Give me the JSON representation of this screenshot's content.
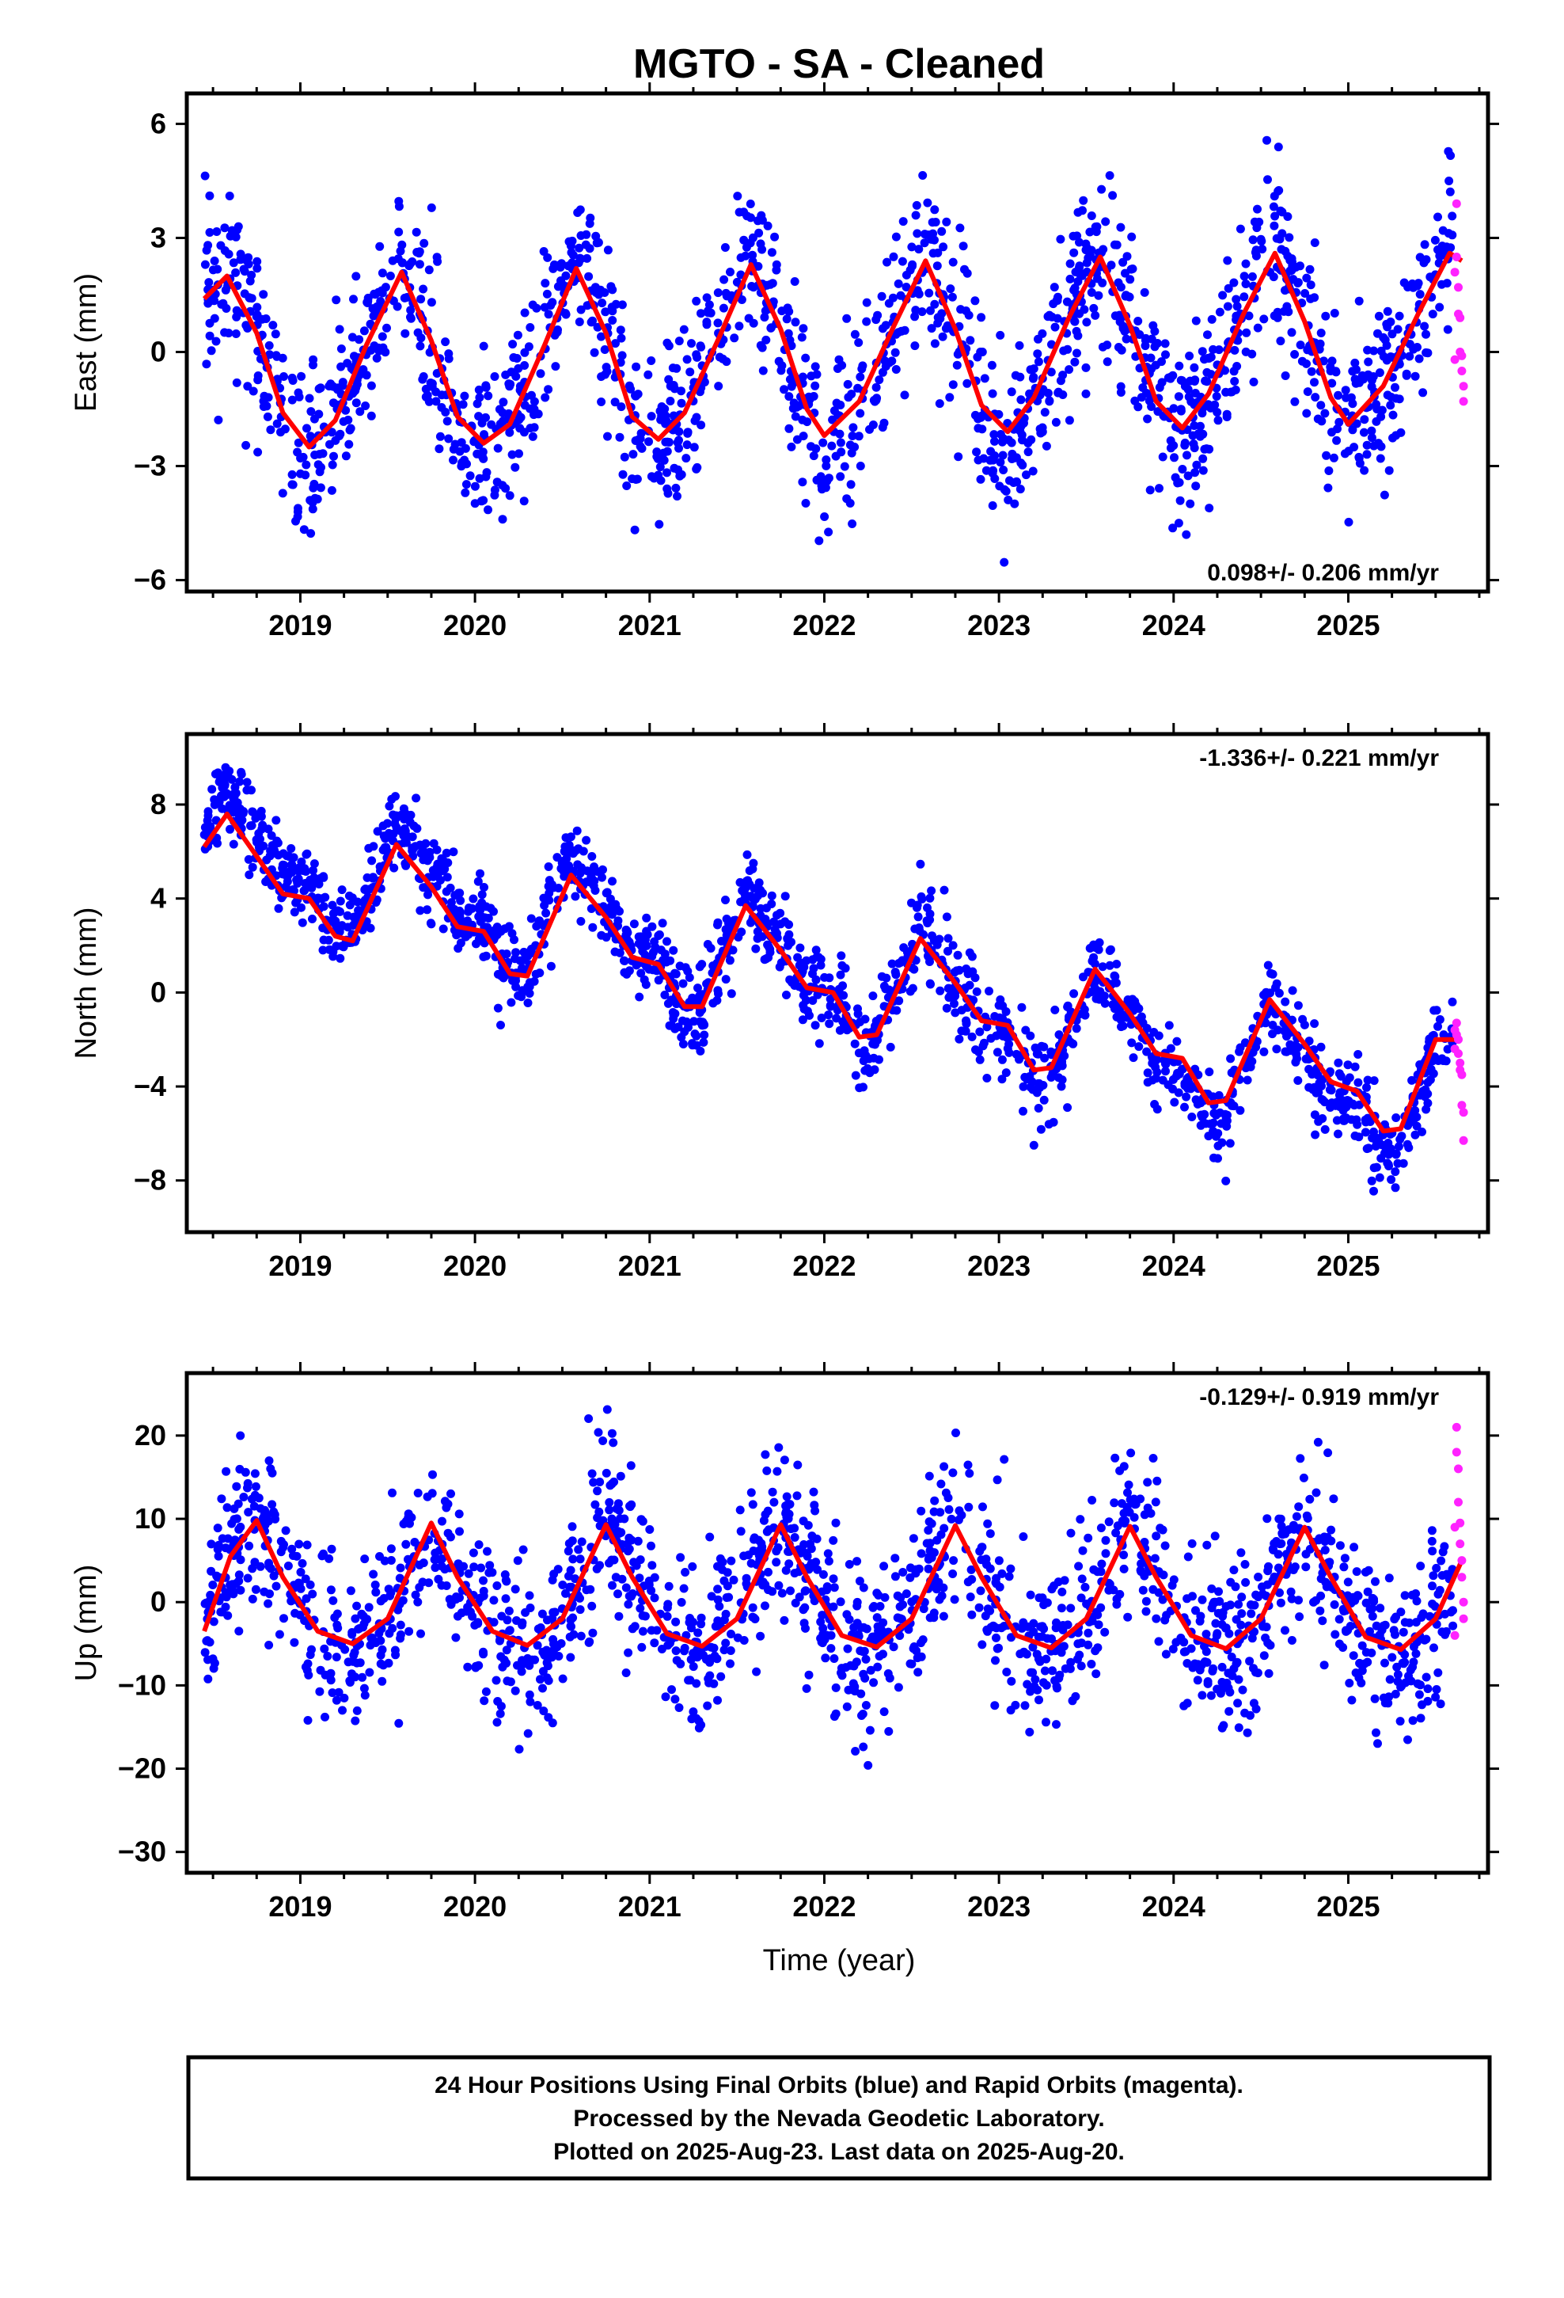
{
  "title": "MGTO  - SA - Cleaned",
  "xlabel": "Time (year)",
  "footer": {
    "line1": "24 Hour Positions Using Final Orbits (blue) and Rapid Orbits (magenta).",
    "line2": "Processed by the Nevada Geodetic Laboratory.",
    "line3": "Plotted on 2025-Aug-23. Last data on 2025-Aug-20."
  },
  "colors": {
    "final_orbits": "#0000ff",
    "rapid_orbits": "#ff22ff",
    "model_fit": "#ff0000",
    "frame": "#000000"
  },
  "chart_data": [
    {
      "type": "scatter",
      "ylabel": "East (mm)",
      "rate_label": "0.098+/- 0.206 mm/yr",
      "xlim": [
        2018.35,
        2025.8
      ],
      "ylim": [
        -6.3,
        6.8
      ],
      "x_ticks": [
        2019,
        2020,
        2021,
        2022,
        2023,
        2024,
        2025
      ],
      "x_tick_labels": [
        "2019",
        "2020",
        "2021",
        "2022",
        "2023",
        "2024",
        "2025"
      ],
      "y_ticks": [
        6,
        3,
        0,
        -3,
        -6
      ],
      "y_tick_labels": [
        "6",
        "3",
        "0",
        "−3",
        "−6"
      ],
      "model": [
        [
          2018.45,
          1.4
        ],
        [
          2018.58,
          2.0
        ],
        [
          2018.75,
          0.5
        ],
        [
          2018.9,
          -1.6
        ],
        [
          2019.05,
          -2.5
        ],
        [
          2019.2,
          -1.8
        ],
        [
          2019.38,
          0.2
        ],
        [
          2019.58,
          2.1
        ],
        [
          2019.75,
          0.3
        ],
        [
          2019.9,
          -1.7
        ],
        [
          2020.05,
          -2.4
        ],
        [
          2020.2,
          -1.9
        ],
        [
          2020.4,
          0.2
        ],
        [
          2020.58,
          2.2
        ],
        [
          2020.75,
          0.5
        ],
        [
          2020.9,
          -1.7
        ],
        [
          2021.05,
          -2.3
        ],
        [
          2021.2,
          -1.6
        ],
        [
          2021.4,
          0.4
        ],
        [
          2021.58,
          2.3
        ],
        [
          2021.75,
          0.6
        ],
        [
          2021.9,
          -1.5
        ],
        [
          2022.0,
          -2.2
        ],
        [
          2022.2,
          -1.3
        ],
        [
          2022.4,
          0.7
        ],
        [
          2022.58,
          2.4
        ],
        [
          2022.75,
          0.6
        ],
        [
          2022.9,
          -1.4
        ],
        [
          2023.05,
          -2.1
        ],
        [
          2023.2,
          -1.2
        ],
        [
          2023.4,
          0.9
        ],
        [
          2023.58,
          2.5
        ],
        [
          2023.75,
          0.7
        ],
        [
          2023.9,
          -1.3
        ],
        [
          2024.05,
          -2.0
        ],
        [
          2024.2,
          -1.1
        ],
        [
          2024.4,
          1.0
        ],
        [
          2024.58,
          2.6
        ],
        [
          2024.75,
          0.8
        ],
        [
          2024.9,
          -1.2
        ],
        [
          2025.0,
          -1.9
        ],
        [
          2025.2,
          -0.9
        ],
        [
          2025.4,
          1.0
        ],
        [
          2025.58,
          2.6
        ],
        [
          2025.65,
          2.4
        ]
      ],
      "final_orbits": {
        "start": 2018.45,
        "end": 2025.6,
        "count": 1700,
        "amplitude": 2.4,
        "offset": 0.0,
        "trend": 0.098,
        "noise": 1.1,
        "phase_year": 0.58
      },
      "rapid_orbits": [
        [
          2025.62,
          3.9
        ],
        [
          2025.62,
          2.5
        ],
        [
          2025.63,
          1.7
        ],
        [
          2025.63,
          1.0
        ],
        [
          2025.64,
          0.9
        ],
        [
          2025.64,
          0.0
        ],
        [
          2025.65,
          -0.1
        ],
        [
          2025.65,
          -0.5
        ],
        [
          2025.66,
          -0.9
        ],
        [
          2025.66,
          -1.3
        ],
        [
          2025.61,
          2.1
        ],
        [
          2025.61,
          -0.2
        ]
      ]
    },
    {
      "type": "scatter",
      "ylabel": "North (mm)",
      "rate_label": "-1.336+/- 0.221 mm/yr",
      "xlim": [
        2018.35,
        2025.8
      ],
      "ylim": [
        -10.2,
        11.0
      ],
      "x_ticks": [
        2019,
        2020,
        2021,
        2022,
        2023,
        2024,
        2025
      ],
      "x_tick_labels": [
        "2019",
        "2020",
        "2021",
        "2022",
        "2023",
        "2024",
        "2025"
      ],
      "y_ticks": [
        8,
        4,
        0,
        -4,
        -8
      ],
      "y_tick_labels": [
        "8",
        "4",
        "0",
        "−4",
        "−8"
      ],
      "model": [
        [
          2018.45,
          6.2
        ],
        [
          2018.58,
          7.6
        ],
        [
          2018.75,
          5.8
        ],
        [
          2018.9,
          4.2
        ],
        [
          2019.05,
          4.0
        ],
        [
          2019.2,
          2.4
        ],
        [
          2019.3,
          2.2
        ],
        [
          2019.55,
          6.3
        ],
        [
          2019.75,
          4.5
        ],
        [
          2019.9,
          2.8
        ],
        [
          2020.05,
          2.6
        ],
        [
          2020.2,
          0.8
        ],
        [
          2020.3,
          0.7
        ],
        [
          2020.55,
          5.0
        ],
        [
          2020.75,
          3.2
        ],
        [
          2020.9,
          1.5
        ],
        [
          2021.05,
          1.2
        ],
        [
          2021.2,
          -0.6
        ],
        [
          2021.3,
          -0.6
        ],
        [
          2021.55,
          3.7
        ],
        [
          2021.75,
          1.8
        ],
        [
          2021.9,
          0.2
        ],
        [
          2022.05,
          0.0
        ],
        [
          2022.2,
          -1.9
        ],
        [
          2022.3,
          -1.8
        ],
        [
          2022.55,
          2.3
        ],
        [
          2022.75,
          0.4
        ],
        [
          2022.9,
          -1.2
        ],
        [
          2023.05,
          -1.4
        ],
        [
          2023.2,
          -3.3
        ],
        [
          2023.3,
          -3.2
        ],
        [
          2023.55,
          1.0
        ],
        [
          2023.75,
          -0.9
        ],
        [
          2023.9,
          -2.6
        ],
        [
          2024.05,
          -2.8
        ],
        [
          2024.2,
          -4.7
        ],
        [
          2024.3,
          -4.6
        ],
        [
          2024.55,
          -0.3
        ],
        [
          2024.75,
          -2.2
        ],
        [
          2024.9,
          -3.8
        ],
        [
          2025.05,
          -4.2
        ],
        [
          2025.2,
          -5.9
        ],
        [
          2025.3,
          -5.8
        ],
        [
          2025.5,
          -2.0
        ],
        [
          2025.65,
          -2.0
        ]
      ],
      "final_orbits": {
        "start": 2018.45,
        "end": 2025.6,
        "count": 1700,
        "amplitude": 2.0,
        "offset": 8.0,
        "trend": -1.336,
        "noise": 0.9,
        "phase_year": 0.55
      },
      "rapid_orbits": [
        [
          2025.62,
          -1.3
        ],
        [
          2025.62,
          -1.8
        ],
        [
          2025.63,
          -2.0
        ],
        [
          2025.63,
          -2.6
        ],
        [
          2025.64,
          -3.0
        ],
        [
          2025.64,
          -3.3
        ],
        [
          2025.65,
          -3.5
        ],
        [
          2025.65,
          -4.8
        ],
        [
          2025.66,
          -5.1
        ],
        [
          2025.66,
          -6.3
        ],
        [
          2025.61,
          -1.6
        ],
        [
          2025.61,
          -2.4
        ]
      ]
    },
    {
      "type": "scatter",
      "ylabel": "Up (mm)",
      "rate_label": "-0.129+/- 0.919 mm/yr",
      "xlim": [
        2018.35,
        2025.8
      ],
      "ylim": [
        -32.5,
        27.5
      ],
      "x_ticks": [
        2019,
        2020,
        2021,
        2022,
        2023,
        2024,
        2025
      ],
      "x_tick_labels": [
        "2019",
        "2020",
        "2021",
        "2022",
        "2023",
        "2024",
        "2025"
      ],
      "y_ticks": [
        20,
        10,
        0,
        -10,
        -20,
        -30
      ],
      "y_tick_labels": [
        "20",
        "10",
        "0",
        "−10",
        "−20",
        "−30"
      ],
      "model": [
        [
          2018.45,
          -3.5
        ],
        [
          2018.6,
          5.5
        ],
        [
          2018.75,
          9.8
        ],
        [
          2018.9,
          3.0
        ],
        [
          2019.1,
          -3.5
        ],
        [
          2019.3,
          -5.0
        ],
        [
          2019.5,
          -2.0
        ],
        [
          2019.75,
          9.5
        ],
        [
          2019.9,
          3.0
        ],
        [
          2020.1,
          -3.5
        ],
        [
          2020.3,
          -5.2
        ],
        [
          2020.5,
          -2.0
        ],
        [
          2020.75,
          9.3
        ],
        [
          2020.9,
          3.0
        ],
        [
          2021.1,
          -3.8
        ],
        [
          2021.3,
          -5.3
        ],
        [
          2021.5,
          -2.0
        ],
        [
          2021.75,
          9.3
        ],
        [
          2021.9,
          3.0
        ],
        [
          2022.1,
          -4.0
        ],
        [
          2022.3,
          -5.4
        ],
        [
          2022.5,
          -2.0
        ],
        [
          2022.75,
          9.2
        ],
        [
          2022.9,
          3.0
        ],
        [
          2023.1,
          -4.0
        ],
        [
          2023.3,
          -5.5
        ],
        [
          2023.5,
          -2.0
        ],
        [
          2023.75,
          9.1
        ],
        [
          2023.9,
          3.0
        ],
        [
          2024.1,
          -4.0
        ],
        [
          2024.3,
          -5.6
        ],
        [
          2024.5,
          -2.0
        ],
        [
          2024.75,
          9.0
        ],
        [
          2024.9,
          3.0
        ],
        [
          2025.1,
          -4.2
        ],
        [
          2025.3,
          -5.7
        ],
        [
          2025.5,
          -2.0
        ],
        [
          2025.65,
          5.0
        ]
      ],
      "final_orbits": {
        "start": 2018.45,
        "end": 2025.6,
        "count": 1700,
        "amplitude": 7.5,
        "offset": 2.0,
        "trend": -0.129,
        "noise": 5.0,
        "phase_year": 0.75
      },
      "rapid_orbits": [
        [
          2025.62,
          21.0
        ],
        [
          2025.62,
          18.0
        ],
        [
          2025.63,
          16.0
        ],
        [
          2025.63,
          12.0
        ],
        [
          2025.64,
          9.5
        ],
        [
          2025.64,
          7.0
        ],
        [
          2025.65,
          5.0
        ],
        [
          2025.65,
          3.0
        ],
        [
          2025.66,
          0.0
        ],
        [
          2025.66,
          -2.0
        ],
        [
          2025.61,
          -4.0
        ],
        [
          2025.61,
          9.0
        ]
      ]
    }
  ]
}
